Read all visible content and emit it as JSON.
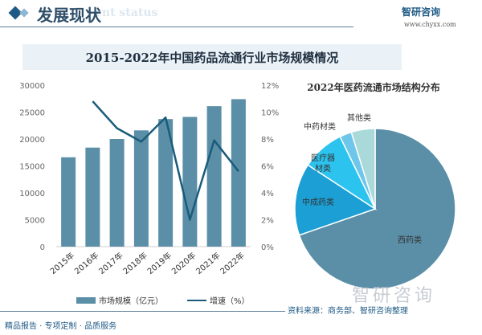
{
  "header": {
    "title": "发展现状",
    "subtitle": "ent status",
    "logo": "智研咨询",
    "url": "www.chyxx.com"
  },
  "banner": {
    "title": "2015-2022年中国药品流通行业市场规模情况"
  },
  "chart_data": [
    {
      "type": "bar",
      "categories": [
        "2015年",
        "2016年",
        "2017年",
        "2018年",
        "2019年",
        "2020年",
        "2021年",
        "2022年"
      ],
      "series": [
        {
          "name": "市场规模（亿元）",
          "type": "bar",
          "axis": "left",
          "values": [
            16600,
            18400,
            20000,
            21600,
            23700,
            24100,
            26100,
            27400
          ]
        },
        {
          "name": "增速（%）",
          "type": "line",
          "axis": "right",
          "values": [
            null,
            10.8,
            8.8,
            7.8,
            9.6,
            2.0,
            7.9,
            5.6
          ]
        }
      ],
      "ylim": [
        0,
        30000
      ],
      "yticks": [
        "0",
        "5000",
        "10000",
        "15000",
        "20000",
        "25000",
        "30000"
      ],
      "y2lim": [
        0,
        12
      ],
      "y2ticks": [
        "0%",
        "2%",
        "4%",
        "6%",
        "8%",
        "10%",
        "12%"
      ],
      "legend": "bottom",
      "grid": false,
      "colors": {
        "bar": "#5b8fa8",
        "line": "#1a5c7a"
      }
    },
    {
      "type": "pie",
      "title": "2022年医药流通市场结构分布",
      "labels": [
        "西药类",
        "中成药类",
        "医疗器材类",
        "中药材类",
        "其他类"
      ],
      "display_labels": [
        "西药类",
        "中成药类",
        "医疗器\n材类",
        "中药材类",
        "其他类"
      ],
      "values": [
        69.7,
        14.5,
        8.6,
        2.4,
        4.8
      ],
      "colors": [
        "#5b8fa8",
        "#1b9fd4",
        "#2cc3ef",
        "#6ec6ea",
        "#a9d9d9"
      ]
    }
  ],
  "footer": {
    "left": "精品报告 · 专项定制 · 品质服务",
    "logo": "智研咨询",
    "source": "资料来源：商务部、智研咨询整理"
  }
}
